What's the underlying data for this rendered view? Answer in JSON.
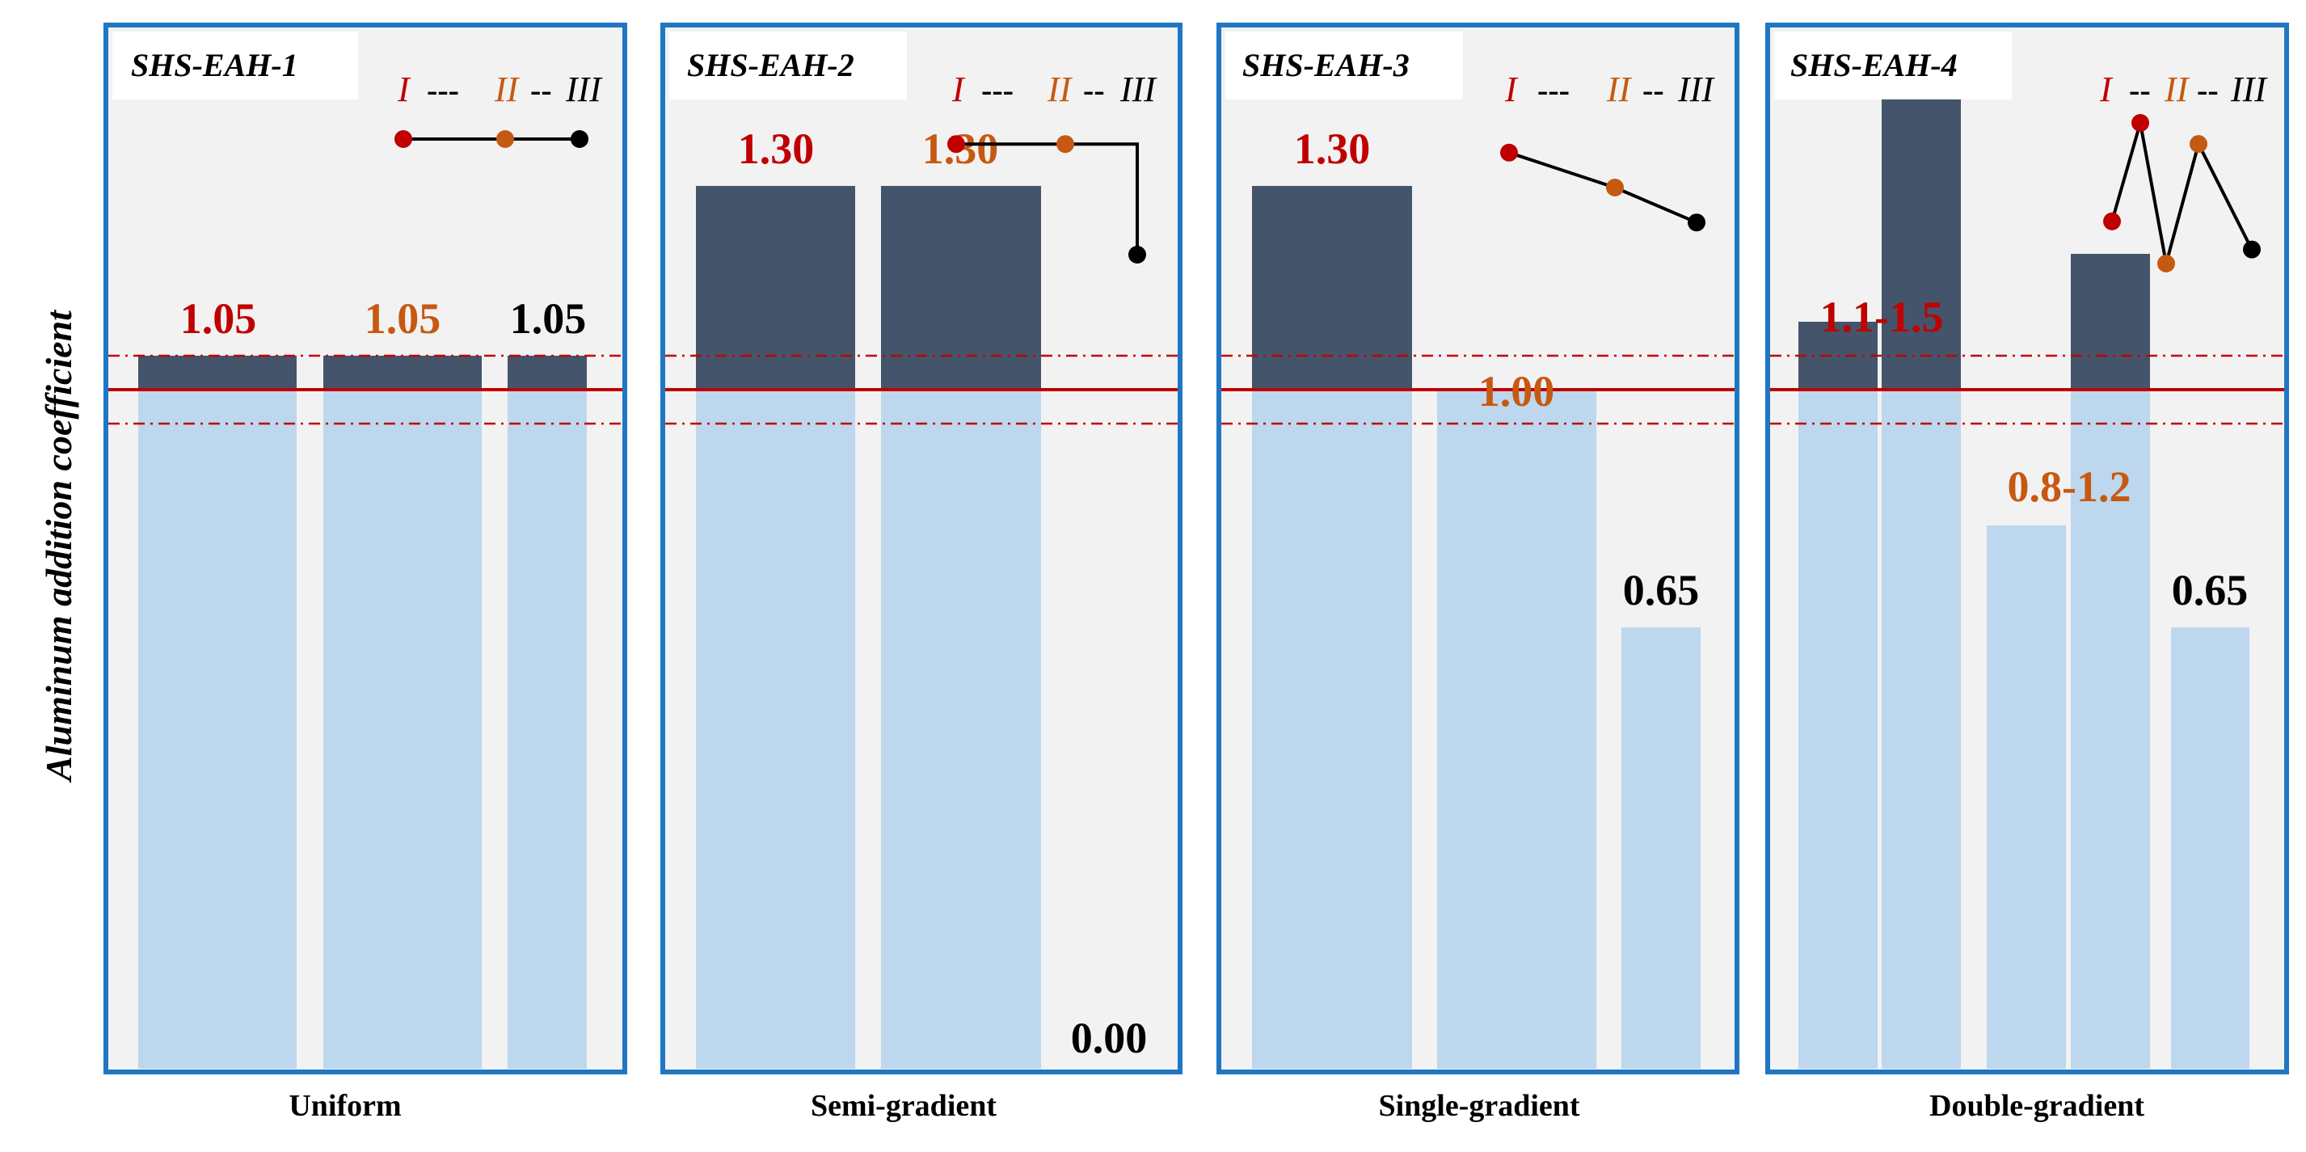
{
  "figure": {
    "y_axis_label": "Aluminum addition coefficient"
  },
  "colors": {
    "panel_bg": "#f2f2f2",
    "panel_border": "#1f77c4",
    "bar_light": "#bdd7ee",
    "bar_dark": "#44546a",
    "ref_line": "#c00000",
    "zone_I": "#c00000",
    "zone_II": "#c65911",
    "zone_III": "#000000"
  },
  "chart_data": [
    {
      "type": "bar",
      "panel_title": "SHS-EAH-1",
      "category_label": "Uniform",
      "zones": [
        "I",
        "II",
        "III"
      ],
      "values": [
        1.05,
        1.05,
        1.05
      ],
      "value_labels": [
        "1.05",
        "1.05",
        "1.05"
      ],
      "schematic_levels": [
        0.5,
        0.5,
        0.5
      ],
      "legend_text": {
        "z1": "I",
        "sep1": "---",
        "z2": "II",
        "sep2": "--",
        "z3": "III"
      },
      "reference": {
        "target": 1.0,
        "band": [
          0.95,
          1.05
        ]
      },
      "ylim": [
        0,
        2.0
      ]
    },
    {
      "type": "bar",
      "panel_title": "SHS-EAH-2",
      "category_label": "Semi-gradient",
      "zones": [
        "I",
        "II",
        "III"
      ],
      "values": [
        1.3,
        1.3,
        0.0
      ],
      "value_labels": [
        "1.30",
        "1.30",
        "0.00"
      ],
      "schematic_levels": [
        0.9,
        0.9,
        0.0
      ],
      "legend_text": {
        "z1": "I",
        "sep1": "---",
        "z2": "II",
        "sep2": "--",
        "z3": "III"
      },
      "reference": {
        "target": 1.0,
        "band": [
          0.95,
          1.05
        ]
      },
      "ylim": [
        0,
        2.0
      ]
    },
    {
      "type": "bar",
      "panel_title": "SHS-EAH-3",
      "category_label": "Single-gradient",
      "zones": [
        "I",
        "II",
        "III"
      ],
      "values": [
        1.3,
        1.0,
        0.65
      ],
      "value_labels": [
        "1.30",
        "1.00",
        "0.65"
      ],
      "schematic_levels": [
        0.9,
        0.5,
        0.1
      ],
      "legend_text": {
        "z1": "I",
        "sep1": "---",
        "z2": "II",
        "sep2": "--",
        "z3": "III"
      },
      "reference": {
        "target": 1.0,
        "band": [
          0.95,
          1.05
        ]
      },
      "ylim": [
        0,
        2.0
      ]
    },
    {
      "type": "bar",
      "panel_title": "SHS-EAH-4",
      "category_label": "Double-gradient",
      "zones": [
        "I",
        "II",
        "III"
      ],
      "groups": [
        {
          "zone": "I",
          "min": 1.1,
          "max": 1.5,
          "label": "1.1-1.5"
        },
        {
          "zone": "II",
          "min": 0.8,
          "max": 1.2,
          "label": "0.8-1.2"
        },
        {
          "zone": "III",
          "min": 0.65,
          "max": 0.65,
          "label": "0.65"
        }
      ],
      "bars": [
        1.1,
        1.5,
        0.8,
        1.2,
        0.65
      ],
      "schematic_levels": [
        0.3,
        1.0,
        0.0,
        0.85,
        0.1
      ],
      "legend_text": {
        "z1": "I",
        "sep1": "--",
        "z2": "II",
        "sep2": "--",
        "z3": "III"
      },
      "reference": {
        "target": 1.0,
        "band": [
          0.95,
          1.05
        ]
      },
      "ylim": [
        0,
        2.0
      ]
    }
  ]
}
